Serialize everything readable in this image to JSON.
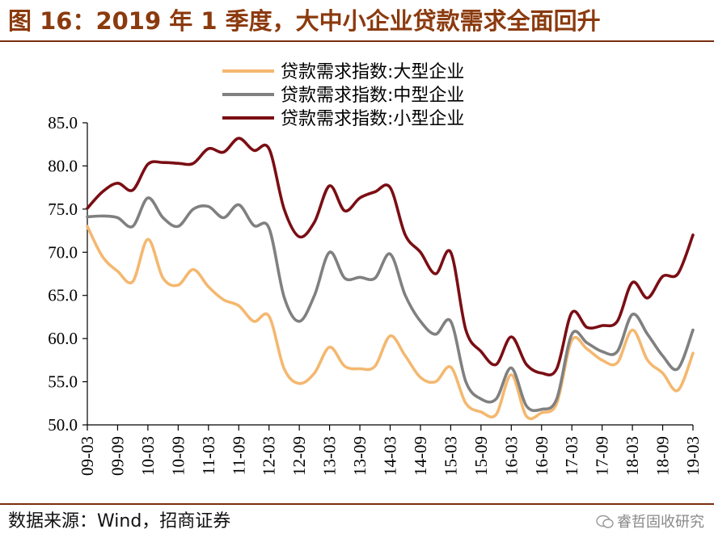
{
  "header": {
    "title": "图 16：2019 年 1 季度，大中小企业贷款需求全面回升"
  },
  "footer": {
    "source": "数据来源：Wind，招商证券",
    "watermark": "睿哲固收研究"
  },
  "chart_data": {
    "type": "line",
    "title": "图 16：2019 年 1 季度，大中小企业贷款需求全面回升",
    "xlabel": "",
    "ylabel": "",
    "ylim": [
      50,
      85
    ],
    "yticks": [
      "50.0",
      "55.0",
      "60.0",
      "65.0",
      "70.0",
      "75.0",
      "80.0",
      "85.0"
    ],
    "x_tick_labels": [
      "09-03",
      "09-09",
      "10-03",
      "10-09",
      "11-03",
      "11-09",
      "12-03",
      "12-09",
      "13-03",
      "13-09",
      "14-03",
      "14-09",
      "15-03",
      "15-09",
      "16-03",
      "16-09",
      "17-03",
      "17-09",
      "18-03",
      "18-09",
      "19-03"
    ],
    "x": [
      "09-03",
      "09-06",
      "09-09",
      "09-12",
      "10-03",
      "10-06",
      "10-09",
      "10-12",
      "11-03",
      "11-06",
      "11-09",
      "11-12",
      "12-03",
      "12-06",
      "12-09",
      "12-12",
      "13-03",
      "13-06",
      "13-09",
      "13-12",
      "14-03",
      "14-06",
      "14-09",
      "14-12",
      "15-03",
      "15-06",
      "15-09",
      "15-12",
      "16-03",
      "16-06",
      "16-09",
      "16-12",
      "17-03",
      "17-06",
      "17-09",
      "17-12",
      "18-03",
      "18-06",
      "18-09",
      "18-12",
      "19-03"
    ],
    "legend_position": "top-right",
    "grid": false,
    "series": [
      {
        "name": "贷款需求指数:大型企业",
        "color": "#F4B870",
        "values": [
          73.0,
          69.5,
          67.8,
          66.6,
          71.5,
          67.0,
          66.2,
          68.0,
          66.0,
          64.5,
          63.8,
          62.0,
          62.6,
          56.5,
          54.8,
          56.0,
          59.0,
          56.8,
          56.5,
          56.8,
          60.3,
          58.0,
          55.5,
          55.0,
          56.7,
          52.5,
          51.5,
          51.2,
          55.8,
          51.0,
          51.4,
          52.5,
          59.8,
          58.8,
          57.5,
          57.2,
          61.0,
          57.5,
          56.0,
          54.0,
          58.3
        ]
      },
      {
        "name": "贷款需求指数:中型企业",
        "color": "#808080",
        "values": [
          74.1,
          74.2,
          74.0,
          73.0,
          76.3,
          74.0,
          73.0,
          75.0,
          75.3,
          74.0,
          75.5,
          73.1,
          72.8,
          64.8,
          62.0,
          65.0,
          70.0,
          67.0,
          67.1,
          67.0,
          69.8,
          65.0,
          62.0,
          60.5,
          62.0,
          55.0,
          53.0,
          53.0,
          56.6,
          52.2,
          51.8,
          53.0,
          60.5,
          59.5,
          58.5,
          58.5,
          62.8,
          60.5,
          58.0,
          56.5,
          61.0
        ]
      },
      {
        "name": "贷款需求指数:小型企业",
        "color": "#7A0E14",
        "values": [
          75.1,
          77.0,
          78.0,
          77.2,
          80.2,
          80.4,
          80.3,
          80.3,
          82.0,
          81.6,
          83.2,
          81.8,
          82.0,
          75.0,
          71.8,
          73.5,
          77.7,
          74.8,
          76.3,
          77.0,
          77.5,
          72.0,
          70.0,
          67.5,
          70.0,
          61.0,
          58.5,
          57.0,
          60.2,
          57.0,
          56.0,
          56.5,
          63.0,
          61.3,
          61.5,
          62.0,
          66.5,
          64.7,
          67.2,
          67.5,
          72.0
        ]
      }
    ]
  }
}
